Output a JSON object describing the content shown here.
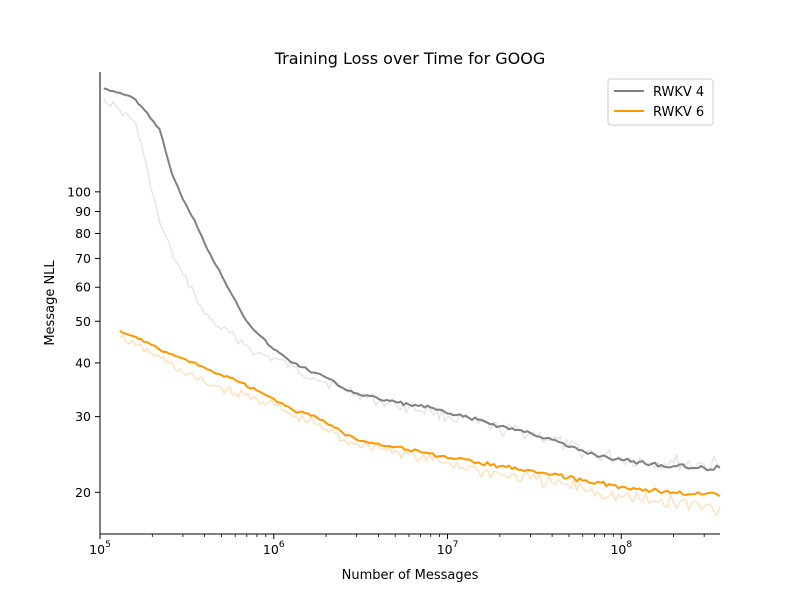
{
  "chart_data": {
    "type": "line",
    "title": "Training Loss over Time for GOOG",
    "xlabel": "Number of Messages",
    "ylabel": "Message NLL",
    "xscale": "log",
    "yscale": "log",
    "xlim": [
      100000,
      370000000
    ],
    "ylim": [
      16,
      190
    ],
    "grid": false,
    "legend_position": "top-right",
    "x_ticks": [
      {
        "value": 100000,
        "base": "10",
        "exp": "5"
      },
      {
        "value": 1000000,
        "base": "10",
        "exp": "6"
      },
      {
        "value": 10000000,
        "base": "10",
        "exp": "7"
      },
      {
        "value": 100000000,
        "base": "10",
        "exp": "8"
      }
    ],
    "y_ticks": [
      {
        "value": 20,
        "label": "20"
      },
      {
        "value": 30,
        "label": "30"
      },
      {
        "value": 40,
        "label": "40"
      },
      {
        "value": 50,
        "label": "50"
      },
      {
        "value": 60,
        "label": "60"
      },
      {
        "value": 70,
        "label": "70"
      },
      {
        "value": 80,
        "label": "80"
      },
      {
        "value": 90,
        "label": "90"
      },
      {
        "value": 100,
        "label": "100"
      }
    ],
    "series": [
      {
        "name": "RWKV 4",
        "color": "#808080",
        "raw_color": "#e6e6e6",
        "x": [
          105000,
          130000,
          160000,
          180000,
          220000,
          260000,
          300000,
          350000,
          400000,
          500000,
          600000,
          700000,
          800000,
          1000000,
          1300000,
          1700000,
          2000000,
          2500000,
          3000000,
          4000000,
          5000000,
          6000000,
          8000000,
          10000000,
          15000000,
          20000000,
          30000000,
          40000000,
          50000000,
          70000000,
          100000000,
          150000000,
          200000000,
          300000000,
          370000000
        ],
        "smoothed": [
          174,
          170,
          164,
          155,
          140,
          110,
          96,
          86,
          76,
          64,
          56,
          50,
          47,
          43,
          40,
          38,
          37,
          35,
          34,
          33,
          32.5,
          32,
          31.5,
          30.5,
          29.5,
          28.5,
          27.5,
          26.5,
          25.5,
          24.5,
          23.8,
          23.3,
          23,
          22.8,
          22.8
        ],
        "raw": [
          165,
          155,
          145,
          120,
          85,
          72,
          64,
          58,
          52,
          48,
          46,
          44,
          42,
          41,
          39,
          37,
          36,
          35,
          34,
          32.5,
          32,
          31.5,
          31,
          30,
          29,
          28,
          27.5,
          26.5,
          25.5,
          24.5,
          24,
          23.5,
          23.5,
          23.2,
          23
        ]
      },
      {
        "name": "RWKV 6",
        "color": "#ff9800",
        "raw_color": "#ffe0bf",
        "x": [
          130000,
          160000,
          200000,
          250000,
          300000,
          400000,
          500000,
          600000,
          800000,
          1000000,
          1300000,
          1700000,
          2000000,
          2500000,
          3000000,
          4000000,
          5000000,
          7000000,
          10000000,
          15000000,
          20000000,
          30000000,
          40000000,
          60000000,
          100000000,
          150000000,
          200000000,
          300000000,
          370000000
        ],
        "smoothed": [
          47.5,
          46,
          44,
          42,
          41,
          39,
          37.5,
          36.5,
          34.5,
          33,
          31,
          30.2,
          29,
          27.5,
          26.5,
          26,
          25.5,
          24.8,
          24,
          23.5,
          23,
          22.5,
          22,
          21.3,
          20.6,
          20.2,
          20,
          19.8,
          19.6
        ],
        "raw": [
          46,
          44,
          42,
          40,
          38,
          36,
          35,
          34,
          33,
          32,
          30,
          29,
          28,
          26.5,
          26,
          25.5,
          25,
          24,
          23.5,
          22.5,
          22,
          21.5,
          21,
          20.5,
          19.5,
          19,
          19,
          18.5,
          18.5
        ]
      }
    ]
  }
}
